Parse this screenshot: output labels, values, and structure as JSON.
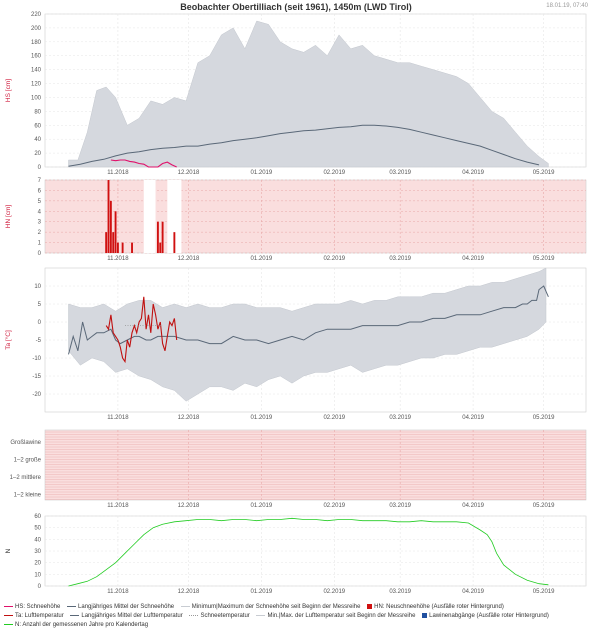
{
  "title": "Beobachter Obertilliach (seit 1961), 1450m (LWD Tirol)",
  "timestamp": "18.01.19, 07:40",
  "colors": {
    "hs": "#e0106a",
    "hn": "#d01010",
    "ta": "#c01010",
    "mean": "#5a6878",
    "band": "#d5d8de",
    "n": "#22cc22",
    "missing_bg": "#fadede",
    "missing_grid": "#e8a8a8"
  },
  "chart_data": [
    {
      "type": "area",
      "id": "hs",
      "ylabel": "HS [cm]",
      "ylim": [
        0,
        220
      ],
      "yticks": [
        0,
        20,
        40,
        60,
        80,
        100,
        120,
        140,
        160,
        180,
        200,
        220
      ],
      "x_tick_labels": [
        "11.2018",
        "12.2018",
        "01.2019",
        "02.2019",
        "03.2019",
        "04.2019",
        "05.2019"
      ],
      "series": [
        {
          "name": "Min|Max der Schneehöhe",
          "kind": "band",
          "x": [
            10,
            14,
            18,
            22,
            26,
            30,
            35,
            40,
            45,
            50,
            55,
            60,
            65,
            70,
            75,
            80,
            85,
            90,
            95,
            100,
            105,
            110,
            115,
            120,
            125,
            130,
            135,
            140,
            145,
            150,
            155,
            160,
            165,
            170,
            175,
            180,
            185,
            190,
            195,
            200,
            205,
            210,
            214
          ],
          "lo": [
            0,
            0,
            0,
            0,
            0,
            0,
            0,
            0,
            0,
            0,
            0,
            0,
            0,
            0,
            0,
            0,
            0,
            0,
            0,
            0,
            0,
            0,
            0,
            0,
            0,
            0,
            0,
            0,
            0,
            0,
            0,
            0,
            0,
            0,
            0,
            0,
            0,
            0,
            0,
            0,
            0,
            0,
            0
          ],
          "hi": [
            10,
            10,
            50,
            110,
            115,
            100,
            60,
            70,
            95,
            90,
            100,
            95,
            150,
            160,
            190,
            200,
            170,
            210,
            205,
            180,
            170,
            165,
            175,
            160,
            190,
            170,
            175,
            160,
            155,
            150,
            150,
            145,
            140,
            135,
            130,
            120,
            100,
            80,
            70,
            50,
            30,
            15,
            5
          ]
        },
        {
          "name": "Langjähriges Mittel der Schneehöhe",
          "kind": "line",
          "x": [
            10,
            15,
            20,
            25,
            30,
            35,
            40,
            45,
            50,
            55,
            60,
            65,
            70,
            75,
            80,
            85,
            90,
            95,
            100,
            105,
            110,
            115,
            120,
            125,
            130,
            135,
            140,
            145,
            150,
            155,
            160,
            165,
            170,
            175,
            180,
            185,
            190,
            195,
            200,
            205,
            210
          ],
          "y": [
            1,
            4,
            8,
            11,
            16,
            20,
            22,
            25,
            27,
            28,
            30,
            30,
            33,
            35,
            38,
            40,
            42,
            45,
            48,
            50,
            52,
            53,
            55,
            57,
            58,
            60,
            60,
            59,
            57,
            54,
            50,
            46,
            42,
            38,
            34,
            30,
            24,
            18,
            12,
            7,
            3
          ]
        },
        {
          "name": "HS: Schneehöhe",
          "kind": "line",
          "x": [
            28,
            30,
            32,
            34,
            36,
            38,
            40,
            42,
            44,
            46,
            48,
            50,
            52,
            54,
            56
          ],
          "y": [
            10,
            9,
            10,
            10,
            8,
            7,
            5,
            4,
            0,
            0,
            0,
            5,
            7,
            3,
            0
          ]
        }
      ]
    },
    {
      "type": "bar",
      "id": "hn",
      "ylabel": "HN [cm]",
      "ylim": [
        0,
        7
      ],
      "yticks": [
        0,
        1,
        2,
        3,
        4,
        5,
        6,
        7
      ],
      "x_tick_labels": [
        "11.2018",
        "12.2018",
        "01.2019",
        "02.2019",
        "03.2019",
        "04.2019",
        "05.2019"
      ],
      "x": [
        26,
        27,
        28,
        29,
        30,
        31,
        33,
        37,
        48,
        49,
        50,
        55
      ],
      "values": [
        2,
        7,
        5,
        2,
        4,
        1,
        1,
        1,
        3,
        1,
        3,
        2
      ],
      "gaps": [
        [
          42,
          47
        ],
        [
          52,
          58
        ]
      ]
    },
    {
      "type": "line",
      "id": "ta",
      "ylabel": "Ta [°C]",
      "ylim": [
        -25,
        15
      ],
      "yticks": [
        -20,
        -15,
        -10,
        -5,
        0,
        5,
        10
      ],
      "x_tick_labels": [
        "11.2018",
        "12.2018",
        "01.2019",
        "02.2019",
        "03.2019",
        "04.2019",
        "05.2019"
      ],
      "series": [
        {
          "name": "Min|Max der Lufttemperatur",
          "kind": "band",
          "x": [
            10,
            15,
            20,
            25,
            30,
            35,
            40,
            45,
            50,
            55,
            60,
            65,
            70,
            75,
            80,
            85,
            90,
            95,
            100,
            105,
            110,
            115,
            120,
            125,
            130,
            135,
            140,
            145,
            150,
            155,
            160,
            165,
            170,
            175,
            180,
            185,
            190,
            195,
            200,
            205,
            210,
            213
          ],
          "lo": [
            -8,
            -12,
            -10,
            -11,
            -14,
            -13,
            -15,
            -16,
            -18,
            -19,
            -22,
            -20,
            -18,
            -18,
            -19,
            -17,
            -18,
            -16,
            -15,
            -17,
            -15,
            -14,
            -14,
            -13,
            -12,
            -14,
            -13,
            -12,
            -12,
            -11,
            -10,
            -10,
            -9,
            -9,
            -8,
            -7,
            -7,
            -6,
            -5,
            -4,
            -2,
            0
          ],
          "hi": [
            5,
            4,
            4,
            5,
            3,
            5,
            6,
            6,
            4,
            5,
            4,
            5,
            4,
            4,
            5,
            5,
            4,
            4,
            4,
            3,
            4,
            5,
            5,
            5,
            6,
            5,
            6,
            6,
            7,
            7,
            7,
            8,
            8,
            9,
            10,
            10,
            11,
            11,
            12,
            13,
            14,
            15
          ]
        },
        {
          "name": "Langjähriges Mittel der Lufttemperatur",
          "kind": "line",
          "x": [
            10,
            12,
            14,
            16,
            18,
            20,
            22,
            25,
            28,
            30,
            32,
            35,
            38,
            40,
            43,
            45,
            48,
            50,
            55,
            60,
            65,
            70,
            75,
            80,
            85,
            90,
            95,
            100,
            105,
            110,
            115,
            120,
            125,
            130,
            135,
            140,
            145,
            150,
            155,
            160,
            165,
            170,
            175,
            180,
            185,
            190,
            195,
            200,
            203,
            205,
            207,
            209,
            210,
            212,
            214
          ],
          "y": [
            -9,
            -4,
            -8,
            0,
            -5,
            -4,
            -3,
            -3,
            -2,
            -5,
            -6,
            -5,
            -4,
            -4,
            -5,
            -5,
            -4,
            -4,
            -4,
            -5,
            -5,
            -6,
            -6,
            -4,
            -5,
            -5,
            -6,
            -5,
            -4,
            -5,
            -3,
            -2,
            -2,
            -2,
            -1,
            -1,
            -1,
            -1,
            0,
            0,
            1,
            1,
            2,
            2,
            2,
            3,
            4,
            4,
            5,
            5,
            6,
            6,
            9,
            10,
            7
          ]
        },
        {
          "name": "Ta: Lufttemperatur",
          "kind": "line",
          "x": [
            26,
            27,
            28,
            29,
            30,
            31,
            32,
            33,
            34,
            35,
            36,
            37,
            38,
            39,
            40,
            41,
            42,
            43,
            44,
            45,
            46,
            47,
            48,
            49,
            50,
            51,
            52,
            53,
            54,
            55,
            56
          ],
          "y": [
            -1,
            -2,
            2,
            -3,
            -4,
            -5,
            -7,
            -10,
            -11,
            -5,
            -7,
            -3,
            -1,
            -3,
            0,
            1,
            7,
            -2,
            2,
            -3,
            5,
            2,
            -2,
            0,
            -6,
            -8,
            -4,
            0,
            -1,
            1,
            -5
          ]
        },
        {
          "name": "Schneetemperatur",
          "kind": "dotted",
          "x": [
            34,
            36,
            38,
            40,
            42,
            44,
            46,
            48,
            50
          ],
          "y": [
            -1,
            -1,
            -1,
            -1,
            -1,
            -1,
            -1,
            -1,
            -1
          ]
        }
      ]
    },
    {
      "type": "table",
      "id": "avalanche",
      "rows": [
        "Großlawine",
        "1–2 große",
        "1–2 mittlere",
        "1–2 kleine"
      ],
      "x_tick_labels": [
        "11.2018",
        "12.2018",
        "01.2019",
        "02.2019",
        "03.2019",
        "04.2019",
        "05.2019"
      ]
    },
    {
      "type": "line",
      "id": "n",
      "ylabel": "N",
      "ylim": [
        0,
        60
      ],
      "yticks": [
        0,
        10,
        20,
        30,
        40,
        50,
        60
      ],
      "x_tick_labels": [
        "11.2018",
        "12.2018",
        "01.2019",
        "02.2019",
        "03.2019",
        "04.2019",
        "05.2019"
      ],
      "series": [
        {
          "name": "N: Anzahl der gemessenen Jahre pro Kalendertag",
          "kind": "line",
          "x": [
            10,
            14,
            18,
            22,
            26,
            30,
            34,
            38,
            42,
            46,
            50,
            55,
            60,
            65,
            70,
            75,
            80,
            85,
            90,
            95,
            100,
            105,
            110,
            115,
            120,
            125,
            130,
            135,
            140,
            145,
            150,
            155,
            160,
            165,
            170,
            175,
            180,
            185,
            188,
            190,
            192,
            195,
            200,
            205,
            210,
            214
          ],
          "y": [
            0,
            2,
            4,
            8,
            14,
            20,
            28,
            36,
            44,
            50,
            53,
            55,
            56,
            57,
            57,
            56,
            57,
            57,
            56,
            57,
            57,
            58,
            57,
            57,
            56,
            57,
            57,
            56,
            56,
            56,
            55,
            55,
            56,
            55,
            55,
            55,
            54,
            48,
            44,
            38,
            28,
            18,
            10,
            5,
            2,
            1
          ]
        }
      ]
    }
  ],
  "legend": [
    {
      "label": "HS: Schneehöhe",
      "color": "#e0106a",
      "kind": "line"
    },
    {
      "label": "Langjähriges Mittel der Schneehöhe",
      "color": "#5a6878",
      "kind": "line"
    },
    {
      "label": "Minimum|Maximum der Schneehöhe seit Beginn der Messreihe",
      "color": "#c8ccd2",
      "kind": "line"
    },
    {
      "label": "HN: Neuschneehöhe (Ausfälle roter Hintergrund)",
      "color": "#d01010",
      "kind": "square"
    },
    {
      "label": "Ta: Lufttemperatur",
      "color": "#c01010",
      "kind": "line"
    },
    {
      "label": "Langjähriges Mittel der Lufttemperatur",
      "color": "#5a6878",
      "kind": "line"
    },
    {
      "label": "Schneetemperatur",
      "color": "#999999",
      "kind": "dotted"
    },
    {
      "label": "Min.|Max. der Lufttemperatur seit Beginn der Messreihe",
      "color": "#c8ccd2",
      "kind": "line"
    },
    {
      "label": "Lawinenabgänge (Ausfälle roter Hintergrund)",
      "color": "#2050a0",
      "kind": "square"
    },
    {
      "label": "N: Anzahl der gemessenen Jahre pro Kalendertag",
      "color": "#22cc22",
      "kind": "line"
    }
  ]
}
